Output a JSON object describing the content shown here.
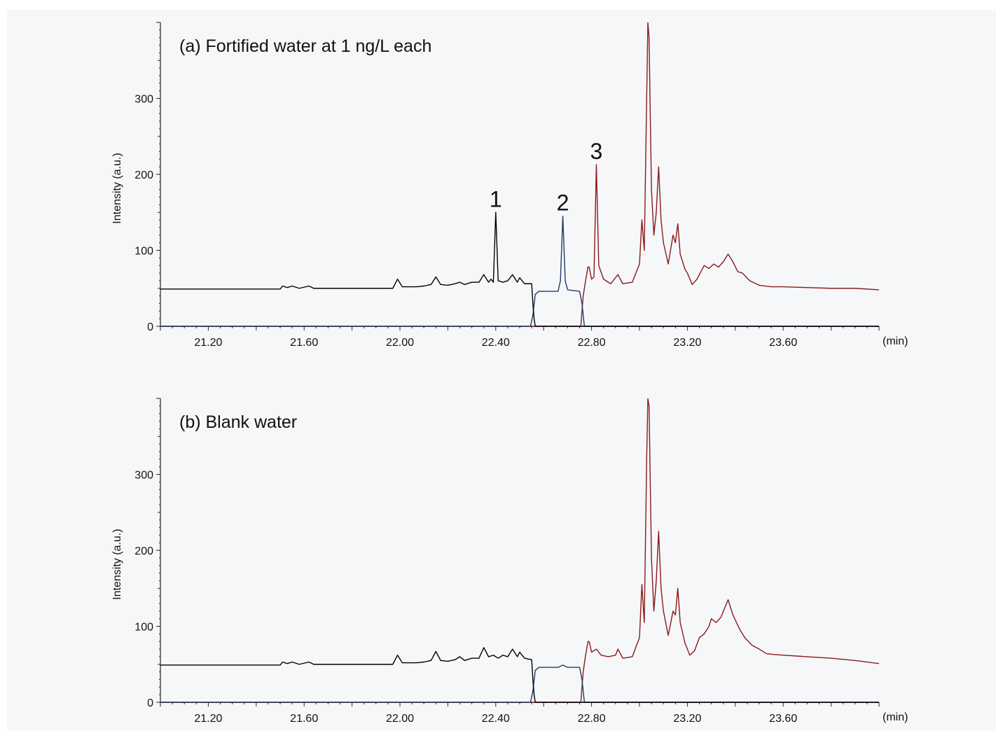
{
  "chart_data": [
    {
      "type": "line",
      "title": "(a) Fortified water at 1 ng/L each",
      "ylabel": "Intensity (a.u.)",
      "xunit": "(min)",
      "xlim": [
        21.0,
        24.0
      ],
      "ylim": [
        0,
        400
      ],
      "xticks": [
        "21.20",
        "21.60",
        "22.00",
        "22.40",
        "22.80",
        "23.20",
        "23.60"
      ],
      "yticks": [
        "0",
        "100",
        "200",
        "300"
      ],
      "peak_labels": [
        {
          "text": "1",
          "x": 22.4,
          "y": 150
        },
        {
          "text": "2",
          "x": 22.68,
          "y": 145
        },
        {
          "text": "3",
          "x": 22.82,
          "y": 213
        }
      ],
      "series": [
        {
          "color": "#000000",
          "points": [
            [
              21.0,
              49
            ],
            [
              21.3,
              49
            ],
            [
              21.5,
              49
            ],
            [
              21.51,
              53
            ],
            [
              21.53,
              51
            ],
            [
              21.55,
              53
            ],
            [
              21.58,
              50
            ],
            [
              21.62,
              53
            ],
            [
              21.64,
              50
            ],
            [
              21.7,
              50
            ],
            [
              21.8,
              50
            ],
            [
              21.9,
              50
            ],
            [
              21.97,
              50
            ],
            [
              21.99,
              62
            ],
            [
              22.01,
              52
            ],
            [
              22.07,
              52
            ],
            [
              22.1,
              53
            ],
            [
              22.13,
              55
            ],
            [
              22.15,
              65
            ],
            [
              22.17,
              55
            ],
            [
              22.2,
              54
            ],
            [
              22.23,
              56
            ],
            [
              22.25,
              58
            ],
            [
              22.27,
              55
            ],
            [
              22.3,
              58
            ],
            [
              22.33,
              58
            ],
            [
              22.35,
              68
            ],
            [
              22.37,
              58
            ],
            [
              22.38,
              62
            ],
            [
              22.39,
              58
            ],
            [
              22.4,
              150
            ],
            [
              22.41,
              60
            ],
            [
              22.43,
              58
            ],
            [
              22.45,
              60
            ],
            [
              22.47,
              68
            ],
            [
              22.49,
              58
            ],
            [
              22.5,
              64
            ],
            [
              22.52,
              56
            ],
            [
              22.55,
              56
            ],
            [
              22.555,
              30
            ],
            [
              22.56,
              10
            ],
            [
              22.565,
              0
            ],
            [
              24.0,
              0
            ]
          ]
        },
        {
          "color": "#1f3b66",
          "points": [
            [
              21.0,
              0
            ],
            [
              22.545,
              0
            ],
            [
              22.555,
              15
            ],
            [
              22.565,
              42
            ],
            [
              22.58,
              46
            ],
            [
              22.66,
              46
            ],
            [
              22.67,
              60
            ],
            [
              22.68,
              145
            ],
            [
              22.69,
              60
            ],
            [
              22.7,
              48
            ],
            [
              22.75,
              46
            ],
            [
              22.76,
              30
            ],
            [
              22.77,
              0
            ],
            [
              24.0,
              0
            ]
          ]
        },
        {
          "color": "#8b1a1a",
          "points": [
            [
              21.0,
              0
            ],
            [
              22.755,
              0
            ],
            [
              22.765,
              40
            ],
            [
              22.775,
              60
            ],
            [
              22.785,
              78
            ],
            [
              22.79,
              78
            ],
            [
              22.8,
              62
            ],
            [
              22.81,
              65
            ],
            [
              22.82,
              213
            ],
            [
              22.83,
              80
            ],
            [
              22.85,
              62
            ],
            [
              22.88,
              56
            ],
            [
              22.91,
              68
            ],
            [
              22.93,
              56
            ],
            [
              22.97,
              58
            ],
            [
              23.0,
              82
            ],
            [
              23.01,
              140
            ],
            [
              23.02,
              100
            ],
            [
              23.03,
              300
            ],
            [
              23.035,
              400
            ],
            [
              23.04,
              380
            ],
            [
              23.05,
              180
            ],
            [
              23.06,
              120
            ],
            [
              23.07,
              150
            ],
            [
              23.08,
              210
            ],
            [
              23.09,
              140
            ],
            [
              23.1,
              110
            ],
            [
              23.12,
              82
            ],
            [
              23.14,
              120
            ],
            [
              23.15,
              110
            ],
            [
              23.16,
              135
            ],
            [
              23.17,
              95
            ],
            [
              23.19,
              75
            ],
            [
              23.2,
              70
            ],
            [
              23.22,
              55
            ],
            [
              23.24,
              62
            ],
            [
              23.27,
              80
            ],
            [
              23.29,
              76
            ],
            [
              23.31,
              82
            ],
            [
              23.33,
              78
            ],
            [
              23.35,
              85
            ],
            [
              23.37,
              95
            ],
            [
              23.39,
              85
            ],
            [
              23.41,
              72
            ],
            [
              23.43,
              70
            ],
            [
              23.46,
              60
            ],
            [
              23.5,
              54
            ],
            [
              23.55,
              52
            ],
            [
              23.6,
              52
            ],
            [
              23.7,
              51
            ],
            [
              23.8,
              50
            ],
            [
              23.9,
              50
            ],
            [
              24.0,
              48
            ]
          ]
        }
      ]
    },
    {
      "type": "line",
      "title": "(b) Blank water",
      "ylabel": "Intensity (a.u.)",
      "xunit": "(min)",
      "xlim": [
        21.0,
        24.0
      ],
      "ylim": [
        0,
        400
      ],
      "xticks": [
        "21.20",
        "21.60",
        "22.00",
        "22.40",
        "22.80",
        "23.20",
        "23.60"
      ],
      "yticks": [
        "0",
        "100",
        "200",
        "300"
      ],
      "peak_labels": [],
      "series": [
        {
          "color": "#000000",
          "points": [
            [
              21.0,
              49
            ],
            [
              21.3,
              49
            ],
            [
              21.5,
              49
            ],
            [
              21.51,
              53
            ],
            [
              21.53,
              51
            ],
            [
              21.55,
              53
            ],
            [
              21.58,
              50
            ],
            [
              21.62,
              53
            ],
            [
              21.64,
              50
            ],
            [
              21.7,
              50
            ],
            [
              21.8,
              50
            ],
            [
              21.9,
              50
            ],
            [
              21.97,
              50
            ],
            [
              21.99,
              62
            ],
            [
              22.01,
              52
            ],
            [
              22.07,
              52
            ],
            [
              22.1,
              53
            ],
            [
              22.13,
              55
            ],
            [
              22.15,
              67
            ],
            [
              22.17,
              55
            ],
            [
              22.2,
              54
            ],
            [
              22.23,
              56
            ],
            [
              22.25,
              60
            ],
            [
              22.27,
              55
            ],
            [
              22.3,
              58
            ],
            [
              22.33,
              58
            ],
            [
              22.35,
              72
            ],
            [
              22.37,
              60
            ],
            [
              22.39,
              62
            ],
            [
              22.41,
              58
            ],
            [
              22.43,
              62
            ],
            [
              22.45,
              60
            ],
            [
              22.47,
              70
            ],
            [
              22.49,
              60
            ],
            [
              22.5,
              66
            ],
            [
              22.52,
              58
            ],
            [
              22.55,
              56
            ],
            [
              22.555,
              30
            ],
            [
              22.56,
              10
            ],
            [
              22.565,
              0
            ],
            [
              24.0,
              0
            ]
          ]
        },
        {
          "color": "#1f3b66",
          "points": [
            [
              21.0,
              0
            ],
            [
              22.545,
              0
            ],
            [
              22.555,
              15
            ],
            [
              22.565,
              42
            ],
            [
              22.58,
              46
            ],
            [
              22.66,
              46
            ],
            [
              22.68,
              49
            ],
            [
              22.7,
              46
            ],
            [
              22.75,
              46
            ],
            [
              22.76,
              30
            ],
            [
              22.77,
              0
            ],
            [
              24.0,
              0
            ]
          ]
        },
        {
          "color": "#8b1a1a",
          "points": [
            [
              21.0,
              0
            ],
            [
              22.755,
              0
            ],
            [
              22.765,
              40
            ],
            [
              22.775,
              62
            ],
            [
              22.785,
              80
            ],
            [
              22.79,
              80
            ],
            [
              22.8,
              66
            ],
            [
              22.82,
              70
            ],
            [
              22.84,
              62
            ],
            [
              22.87,
              60
            ],
            [
              22.9,
              62
            ],
            [
              22.91,
              70
            ],
            [
              22.93,
              58
            ],
            [
              22.97,
              60
            ],
            [
              23.0,
              85
            ],
            [
              23.01,
              155
            ],
            [
              23.02,
              105
            ],
            [
              23.03,
              320
            ],
            [
              23.035,
              400
            ],
            [
              23.04,
              390
            ],
            [
              23.05,
              190
            ],
            [
              23.06,
              120
            ],
            [
              23.07,
              160
            ],
            [
              23.08,
              225
            ],
            [
              23.09,
              150
            ],
            [
              23.1,
              120
            ],
            [
              23.12,
              88
            ],
            [
              23.14,
              120
            ],
            [
              23.15,
              115
            ],
            [
              23.16,
              150
            ],
            [
              23.17,
              105
            ],
            [
              23.19,
              78
            ],
            [
              23.21,
              62
            ],
            [
              23.23,
              68
            ],
            [
              23.25,
              85
            ],
            [
              23.27,
              90
            ],
            [
              23.29,
              100
            ],
            [
              23.3,
              110
            ],
            [
              23.32,
              105
            ],
            [
              23.34,
              112
            ],
            [
              23.37,
              135
            ],
            [
              23.39,
              115
            ],
            [
              23.42,
              95
            ],
            [
              23.44,
              85
            ],
            [
              23.47,
              75
            ],
            [
              23.5,
              70
            ],
            [
              23.53,
              64
            ],
            [
              23.56,
              63
            ],
            [
              23.6,
              62
            ],
            [
              23.7,
              60
            ],
            [
              23.8,
              58
            ],
            [
              23.9,
              55
            ],
            [
              24.0,
              51
            ]
          ]
        }
      ]
    }
  ]
}
